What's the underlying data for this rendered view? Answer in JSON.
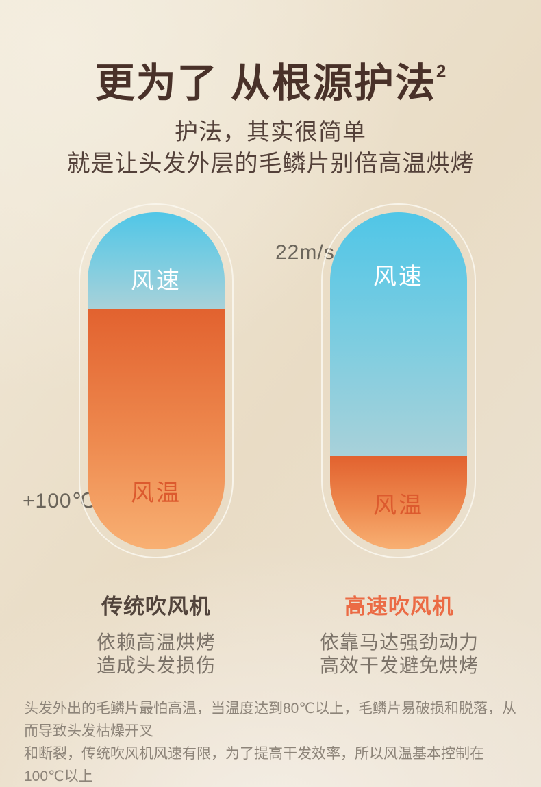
{
  "title": {
    "text": "更为了 从根源护法",
    "superscript": "2"
  },
  "subtitle": {
    "line1": "护法，其实很简单",
    "line2": "就是让头发外层的毛鳞片别倍高温烘烤"
  },
  "diagram": {
    "left_capsule": {
      "annotation": "+100℃",
      "speed_label": "风速",
      "temp_label": "风温",
      "speed_percent": 29,
      "temp_percent": 71,
      "speed_height_style": "height:28.7%",
      "product_name": "传统吹风机",
      "desc_line1": "依赖高温烘烤",
      "desc_line2": "造成头发损伤"
    },
    "right_capsule": {
      "annotation": "22m/s",
      "speed_label": "风速",
      "temp_label": "风温",
      "speed_percent": 72,
      "temp_percent": 28,
      "speed_height_style": "height:72.4%",
      "product_name": "高速吹风机",
      "desc_line1": "依靠马达强劲动力",
      "desc_line2": "高效干发避免烘烤"
    }
  },
  "footnote": {
    "line1": "头发外出的毛鳞片最怕高温，当温度达到80℃以上，毛鳞片易破损和脱落，从而导致头发枯燥开叉",
    "line2": "和断裂，传统吹风机风速有限，为了提高干发效率，所以风温基本控制在100℃以上"
  },
  "colors": {
    "title_brown": "#493129",
    "subtitle_brown": "#54413a",
    "speed_blue_top": "#50c6e7",
    "speed_blue_bottom": "#a8d1d9",
    "temp_orange_top": "#e2622f",
    "temp_orange_bottom": "#f8b073",
    "temp_label_orange": "#dc5a2e",
    "highspeed_name_orange": "#eb6b45",
    "traditional_name_brown": "#52443c",
    "desc_gray": "#7c7369",
    "annotation_gray": "#6b655b",
    "footnote_gray": "#8d8479",
    "background_cream": "#ece0cd"
  }
}
